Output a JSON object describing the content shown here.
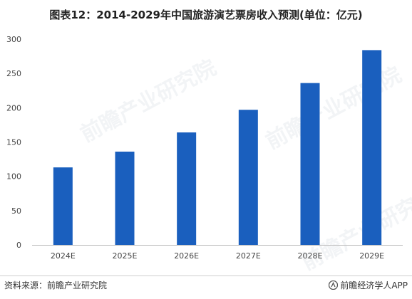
{
  "title": "图表12：2014-2029年中国旅游演艺票房收入预测(单位：亿元)",
  "source": "资料来源：前瞻产业研究院",
  "brand": "前瞻经济学人APP",
  "watermark_text": "前瞻产业研究院",
  "colors": {
    "bar": "#1a5fbe",
    "axis": "#bdbdbd",
    "tick_text": "#444444"
  },
  "chart_data": {
    "type": "bar",
    "categories": [
      "2024E",
      "2025E",
      "2026E",
      "2027E",
      "2028E",
      "2029E"
    ],
    "values": [
      113,
      136,
      164,
      197,
      236,
      284
    ],
    "title": "图表12：2014-2029年中国旅游演艺票房收入预测(单位：亿元)",
    "xlabel": "",
    "ylabel": "",
    "ylim": [
      0,
      300
    ],
    "yticks": [
      0,
      50,
      100,
      150,
      200,
      250,
      300
    ],
    "grid": false,
    "legend": "none"
  }
}
